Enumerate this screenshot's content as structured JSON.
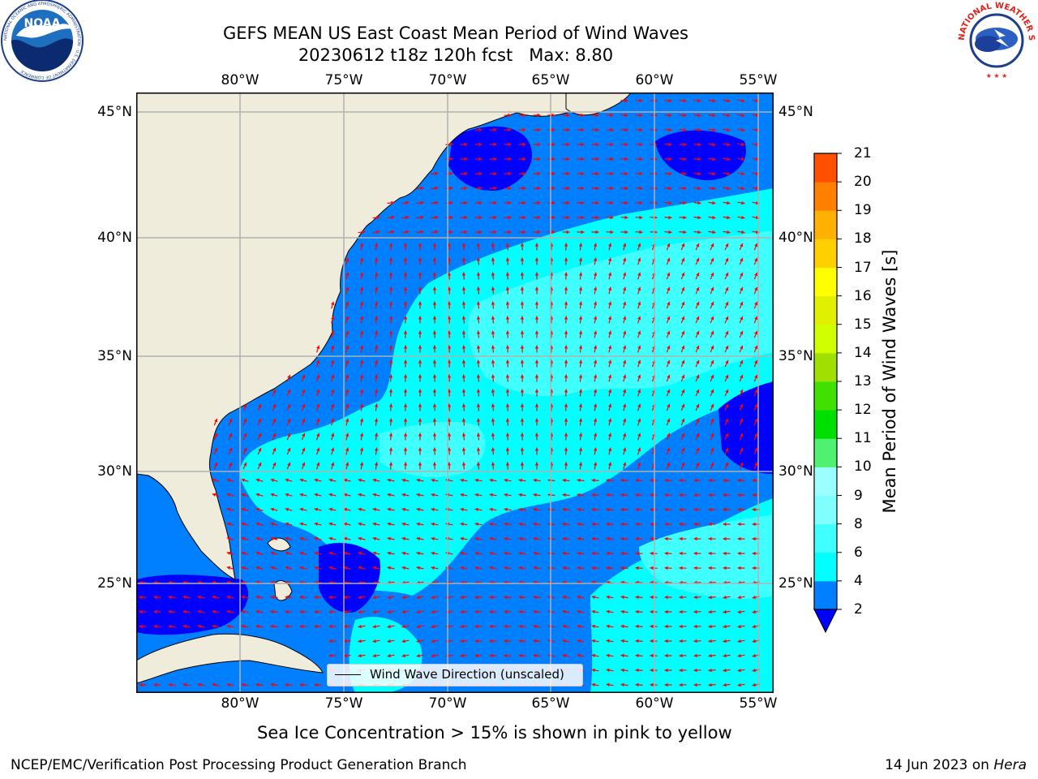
{
  "title": {
    "line1": "GEFS MEAN US East Coast Mean Period of Wind Waves",
    "line2": "20230612 t18z 120h fcst   Max: 8.80"
  },
  "logos": {
    "noaa_text": "NOAA",
    "noaa_ring": "NATIONAL OCEANIC AND ATMOSPHERIC ADMINISTRATION · U.S. DEPARTMENT OF COMMERCE",
    "nws_ring": "NATIONAL WEATHER SERVICE"
  },
  "map": {
    "lon_labels": [
      "80°W",
      "75°W",
      "70°W",
      "65°W",
      "60°W",
      "55°W"
    ],
    "lat_labels": [
      "45°N",
      "40°N",
      "35°N",
      "30°N",
      "25°N"
    ],
    "legend_label": "Wind Wave Direction (unscaled)",
    "arrow_color": "#ff0000",
    "land_color": "#efecdc",
    "field_colors": {
      "2-4": "#0080ff",
      "4-6": "#00ffff",
      "6-8": "#40ffff",
      "below_2": "#0000ff"
    }
  },
  "colorbar": {
    "title": "Mean Period of Wind Waves [s]",
    "ticks": [
      "2",
      "4",
      "6",
      "8",
      "9",
      "10",
      "11",
      "12",
      "13",
      "14",
      "15",
      "16",
      "17",
      "18",
      "19",
      "20",
      "21"
    ],
    "colors": [
      "#0080ff",
      "#00ffff",
      "#40ffff",
      "#80ffff",
      "#9cffff",
      "#50f070",
      "#00e000",
      "#40e000",
      "#a0e000",
      "#d0ff00",
      "#e0f000",
      "#ffff00",
      "#ffd000",
      "#ffb000",
      "#ff8000",
      "#ff5000",
      "#ff2000",
      "#ff0000"
    ],
    "extend_color": "#0000ff"
  },
  "notes": {
    "sea_ice": "Sea Ice Concentration > 15% is shown in pink to yellow",
    "footer_left": "NCEP/EMC/Verification Post Processing Product Generation Branch",
    "footer_date": "14 Jun 2023 on ",
    "footer_machine": "Hera"
  }
}
